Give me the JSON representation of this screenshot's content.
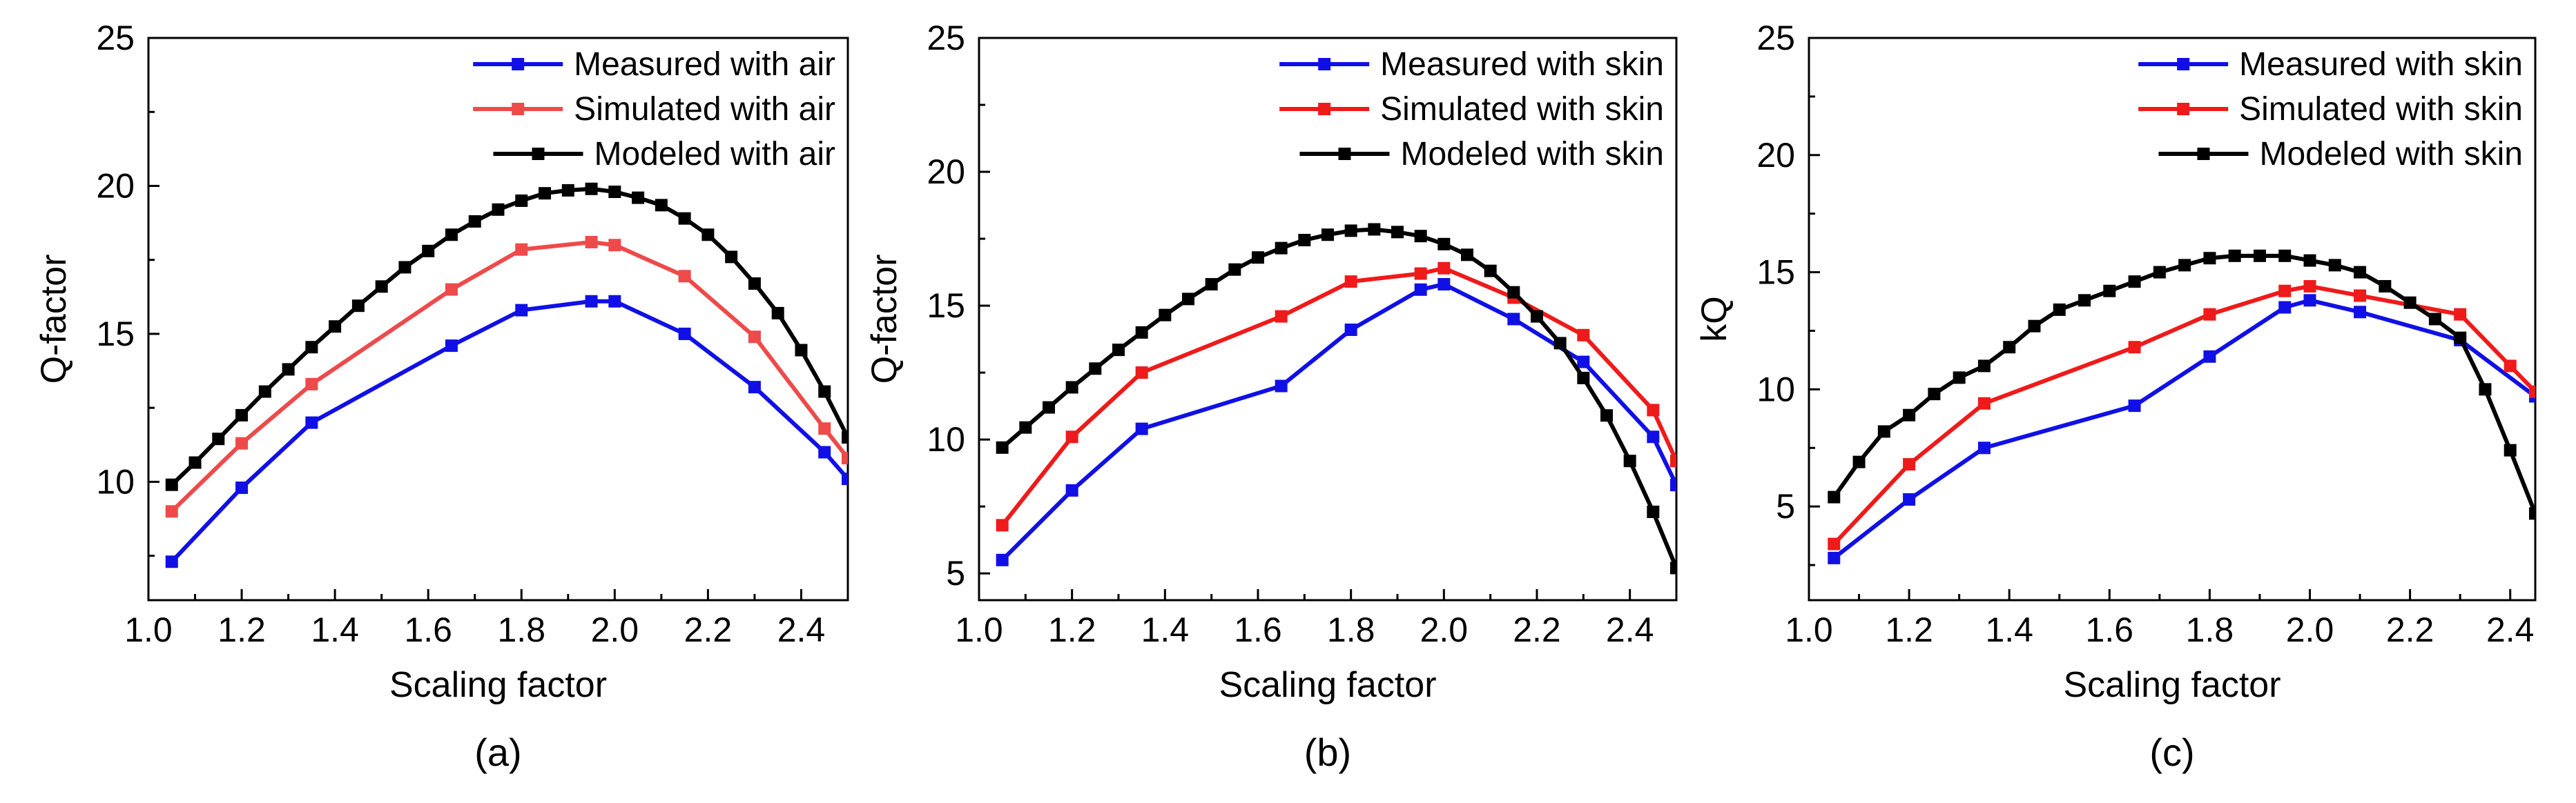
{
  "colors": {
    "blue": "#1010e6",
    "red": "#ef1a1a",
    "red_light": "#ee4a4a",
    "black": "#000000"
  },
  "chart_data": [
    {
      "type": "line",
      "panel_label": "(a)",
      "xlabel": "Scaling factor",
      "ylabel": "Q-factor",
      "xlim": [
        1.0,
        2.5
      ],
      "ylim": [
        6,
        25
      ],
      "xticks": [
        1.0,
        1.2,
        1.4,
        1.6,
        1.8,
        2.0,
        2.2,
        2.4
      ],
      "xtick_labels": [
        "1.0",
        "1.2",
        "1.4",
        "1.6",
        "1.8",
        "2.0",
        "2.2",
        "2.4"
      ],
      "yticks": [
        10,
        15,
        20,
        25
      ],
      "ytick_labels": [
        "10",
        "15",
        "20",
        "25"
      ],
      "legend_position": "top-right",
      "series": [
        {
          "name": "Measured with air",
          "color": "#1010e6",
          "x": [
            1.05,
            1.2,
            1.35,
            1.65,
            1.8,
            1.95,
            2.0,
            2.15,
            2.3,
            2.45,
            2.5
          ],
          "y": [
            7.3,
            9.8,
            12.0,
            14.6,
            15.8,
            16.1,
            16.1,
            15.0,
            13.2,
            11.0,
            10.1
          ]
        },
        {
          "name": "Simulated with air",
          "color": "#ee4a4a",
          "x": [
            1.05,
            1.2,
            1.35,
            1.65,
            1.8,
            1.95,
            2.0,
            2.15,
            2.3,
            2.45,
            2.5
          ],
          "y": [
            9.0,
            11.3,
            13.3,
            16.5,
            17.85,
            18.1,
            18.0,
            16.95,
            14.9,
            11.8,
            10.8
          ]
        },
        {
          "name": "Modeled with air",
          "color": "#000000",
          "x": [
            1.05,
            1.1,
            1.15,
            1.2,
            1.25,
            1.3,
            1.35,
            1.4,
            1.45,
            1.5,
            1.55,
            1.6,
            1.65,
            1.7,
            1.75,
            1.8,
            1.85,
            1.9,
            1.95,
            2.0,
            2.05,
            2.1,
            2.15,
            2.2,
            2.25,
            2.3,
            2.35,
            2.4,
            2.45,
            2.5
          ],
          "y": [
            9.9,
            10.65,
            11.45,
            12.25,
            13.05,
            13.8,
            14.55,
            15.25,
            15.95,
            16.6,
            17.25,
            17.8,
            18.35,
            18.8,
            19.2,
            19.5,
            19.75,
            19.85,
            19.9,
            19.8,
            19.6,
            19.35,
            18.9,
            18.35,
            17.6,
            16.7,
            15.7,
            14.45,
            13.05,
            11.5
          ]
        }
      ]
    },
    {
      "type": "line",
      "panel_label": "(b)",
      "xlabel": "Scaling factor",
      "ylabel": "Q-factor",
      "xlim": [
        1.0,
        2.5
      ],
      "ylim": [
        4,
        25
      ],
      "xticks": [
        1.0,
        1.2,
        1.4,
        1.6,
        1.8,
        2.0,
        2.2,
        2.4
      ],
      "xtick_labels": [
        "1.0",
        "1.2",
        "1.4",
        "1.6",
        "1.8",
        "2.0",
        "2.2",
        "2.4"
      ],
      "yticks": [
        5,
        10,
        15,
        20,
        25
      ],
      "ytick_labels": [
        "5",
        "10",
        "15",
        "20",
        "25"
      ],
      "legend_position": "top-right",
      "series": [
        {
          "name": "Measured with skin",
          "color": "#1010e6",
          "x": [
            1.05,
            1.2,
            1.35,
            1.65,
            1.8,
            1.95,
            2.0,
            2.15,
            2.3,
            2.45,
            2.5
          ],
          "y": [
            5.5,
            8.1,
            10.4,
            12.0,
            14.1,
            15.6,
            15.8,
            14.5,
            12.9,
            10.1,
            8.3
          ]
        },
        {
          "name": "Simulated with skin",
          "color": "#ef1a1a",
          "x": [
            1.05,
            1.2,
            1.35,
            1.65,
            1.8,
            1.95,
            2.0,
            2.15,
            2.3,
            2.45,
            2.5
          ],
          "y": [
            6.8,
            10.1,
            12.5,
            14.6,
            15.9,
            16.2,
            16.4,
            15.3,
            13.9,
            11.1,
            9.2
          ]
        },
        {
          "name": "Modeled with skin",
          "color": "#000000",
          "x": [
            1.05,
            1.1,
            1.15,
            1.2,
            1.25,
            1.3,
            1.35,
            1.4,
            1.45,
            1.5,
            1.55,
            1.6,
            1.65,
            1.7,
            1.75,
            1.8,
            1.85,
            1.9,
            1.95,
            2.0,
            2.05,
            2.1,
            2.15,
            2.2,
            2.25,
            2.3,
            2.35,
            2.4,
            2.45,
            2.5
          ],
          "y": [
            9.7,
            10.45,
            11.2,
            11.95,
            12.65,
            13.35,
            14.0,
            14.65,
            15.25,
            15.8,
            16.35,
            16.8,
            17.15,
            17.45,
            17.65,
            17.8,
            17.85,
            17.75,
            17.6,
            17.3,
            16.9,
            16.3,
            15.5,
            14.6,
            13.6,
            12.3,
            10.9,
            9.2,
            7.3,
            5.2
          ]
        }
      ]
    },
    {
      "type": "line",
      "panel_label": "(c)",
      "xlabel": "Scaling factor",
      "ylabel": "kQ",
      "xlim": [
        1.0,
        2.45
      ],
      "ylim": [
        1,
        25
      ],
      "xticks": [
        1.0,
        1.2,
        1.4,
        1.6,
        1.8,
        2.0,
        2.2,
        2.4
      ],
      "xtick_labels": [
        "1.0",
        "1.2",
        "1.4",
        "1.6",
        "1.8",
        "2.0",
        "2.2",
        "2.4"
      ],
      "yticks": [
        5,
        10,
        15,
        20,
        25
      ],
      "ytick_labels": [
        "5",
        "10",
        "15",
        "20",
        "25"
      ],
      "legend_position": "top-right",
      "series": [
        {
          "name": "Measured with skin",
          "color": "#1010e6",
          "x": [
            1.05,
            1.2,
            1.35,
            1.65,
            1.8,
            1.95,
            2.0,
            2.1,
            2.3,
            2.45
          ],
          "y": [
            2.8,
            5.3,
            7.5,
            9.3,
            11.4,
            13.5,
            13.8,
            13.3,
            12.1,
            9.7
          ]
        },
        {
          "name": "Simulated with skin",
          "color": "#ef1a1a",
          "x": [
            1.05,
            1.2,
            1.35,
            1.65,
            1.8,
            1.95,
            2.0,
            2.1,
            2.3,
            2.4,
            2.45
          ],
          "y": [
            3.4,
            6.8,
            9.4,
            11.8,
            13.2,
            14.2,
            14.4,
            14.0,
            13.2,
            11.0,
            9.9
          ]
        },
        {
          "name": "Modeled with skin",
          "color": "#000000",
          "x": [
            1.05,
            1.1,
            1.15,
            1.2,
            1.25,
            1.3,
            1.35,
            1.4,
            1.45,
            1.5,
            1.55,
            1.6,
            1.65,
            1.7,
            1.75,
            1.8,
            1.85,
            1.9,
            1.95,
            2.0,
            2.05,
            2.1,
            2.15,
            2.2,
            2.25,
            2.3,
            2.35,
            2.4,
            2.45
          ],
          "y": [
            5.4,
            6.9,
            8.2,
            8.9,
            9.8,
            10.5,
            11.0,
            11.8,
            12.7,
            13.4,
            13.8,
            14.2,
            14.6,
            15.0,
            15.3,
            15.6,
            15.7,
            15.7,
            15.7,
            15.5,
            15.3,
            15.0,
            14.4,
            13.7,
            13.0,
            12.2,
            10.0,
            7.4,
            4.7
          ]
        }
      ]
    }
  ]
}
